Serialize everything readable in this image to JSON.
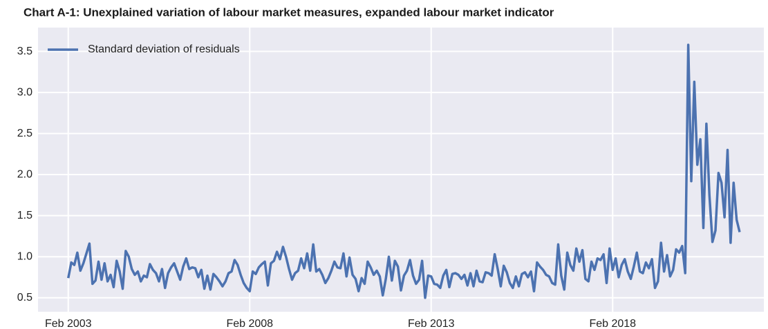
{
  "chart_data": {
    "type": "line",
    "title": "Chart A-1: Unexplained variation of labour market measures, expanded labour market indicator",
    "x": [
      "2003-02",
      "2003-03",
      "2003-04",
      "2003-05",
      "2003-06",
      "2003-07",
      "2003-08",
      "2003-09",
      "2003-10",
      "2003-11",
      "2003-12",
      "2004-01",
      "2004-02",
      "2004-03",
      "2004-04",
      "2004-05",
      "2004-06",
      "2004-07",
      "2004-08",
      "2004-09",
      "2004-10",
      "2004-11",
      "2004-12",
      "2005-01",
      "2005-02",
      "2005-03",
      "2005-04",
      "2005-05",
      "2005-06",
      "2005-07",
      "2005-08",
      "2005-09",
      "2005-10",
      "2005-11",
      "2005-12",
      "2006-01",
      "2006-02",
      "2006-03",
      "2006-04",
      "2006-05",
      "2006-06",
      "2006-07",
      "2006-08",
      "2006-09",
      "2006-10",
      "2006-11",
      "2006-12",
      "2007-01",
      "2007-02",
      "2007-03",
      "2007-04",
      "2007-05",
      "2007-06",
      "2007-07",
      "2007-08",
      "2007-09",
      "2007-10",
      "2007-11",
      "2007-12",
      "2008-01",
      "2008-02",
      "2008-03",
      "2008-04",
      "2008-05",
      "2008-06",
      "2008-07",
      "2008-08",
      "2008-09",
      "2008-10",
      "2008-11",
      "2008-12",
      "2009-01",
      "2009-02",
      "2009-03",
      "2009-04",
      "2009-05",
      "2009-06",
      "2009-07",
      "2009-08",
      "2009-09",
      "2009-10",
      "2009-11",
      "2009-12",
      "2010-01",
      "2010-02",
      "2010-03",
      "2010-04",
      "2010-05",
      "2010-06",
      "2010-07",
      "2010-08",
      "2010-09",
      "2010-10",
      "2010-11",
      "2010-12",
      "2011-01",
      "2011-02",
      "2011-03",
      "2011-04",
      "2011-05",
      "2011-06",
      "2011-07",
      "2011-08",
      "2011-09",
      "2011-10",
      "2011-11",
      "2011-12",
      "2012-01",
      "2012-02",
      "2012-03",
      "2012-04",
      "2012-05",
      "2012-06",
      "2012-07",
      "2012-08",
      "2012-09",
      "2012-10",
      "2012-11",
      "2012-12",
      "2013-01",
      "2013-02",
      "2013-03",
      "2013-04",
      "2013-05",
      "2013-06",
      "2013-07",
      "2013-08",
      "2013-09",
      "2013-10",
      "2013-11",
      "2013-12",
      "2014-01",
      "2014-02",
      "2014-03",
      "2014-04",
      "2014-05",
      "2014-06",
      "2014-07",
      "2014-08",
      "2014-09",
      "2014-10",
      "2014-11",
      "2014-12",
      "2015-01",
      "2015-02",
      "2015-03",
      "2015-04",
      "2015-05",
      "2015-06",
      "2015-07",
      "2015-08",
      "2015-09",
      "2015-10",
      "2015-11",
      "2015-12",
      "2016-01",
      "2016-02",
      "2016-03",
      "2016-04",
      "2016-05",
      "2016-06",
      "2016-07",
      "2016-08",
      "2016-09",
      "2016-10",
      "2016-11",
      "2016-12",
      "2017-01",
      "2017-02",
      "2017-03",
      "2017-04",
      "2017-05",
      "2017-06",
      "2017-07",
      "2017-08",
      "2017-09",
      "2017-10",
      "2017-11",
      "2017-12",
      "2018-01",
      "2018-02",
      "2018-03",
      "2018-04",
      "2018-05",
      "2018-06",
      "2018-07",
      "2018-08",
      "2018-09",
      "2018-10",
      "2018-11",
      "2018-12",
      "2019-01",
      "2019-02",
      "2019-03",
      "2019-04",
      "2019-05",
      "2019-06",
      "2019-07",
      "2019-08",
      "2019-09",
      "2019-10",
      "2019-11",
      "2019-12",
      "2020-01",
      "2020-02",
      "2020-03",
      "2020-04",
      "2020-05",
      "2020-06",
      "2020-07",
      "2020-08",
      "2020-09",
      "2020-10",
      "2020-11",
      "2020-12",
      "2021-01",
      "2021-02",
      "2021-03",
      "2021-04",
      "2021-05",
      "2021-06",
      "2021-07",
      "2021-08"
    ],
    "series": [
      {
        "name": "Standard deviation of residuals",
        "color": "#4c72b0",
        "values": [
          0.74,
          0.93,
          0.9,
          1.05,
          0.83,
          0.92,
          1.04,
          1.16,
          0.67,
          0.71,
          0.94,
          0.72,
          0.92,
          0.7,
          0.78,
          0.63,
          0.95,
          0.82,
          0.61,
          1.07,
          1.0,
          0.85,
          0.78,
          0.82,
          0.7,
          0.77,
          0.75,
          0.91,
          0.84,
          0.8,
          0.7,
          0.85,
          0.62,
          0.8,
          0.87,
          0.92,
          0.82,
          0.72,
          0.88,
          0.98,
          0.85,
          0.87,
          0.86,
          0.75,
          0.84,
          0.61,
          0.77,
          0.6,
          0.79,
          0.75,
          0.7,
          0.64,
          0.7,
          0.8,
          0.82,
          0.96,
          0.9,
          0.78,
          0.68,
          0.62,
          0.58,
          0.82,
          0.79,
          0.87,
          0.91,
          0.94,
          0.65,
          0.92,
          0.95,
          1.06,
          0.97,
          1.12,
          1.0,
          0.85,
          0.72,
          0.8,
          0.83,
          0.98,
          0.86,
          1.04,
          0.83,
          1.15,
          0.82,
          0.85,
          0.78,
          0.68,
          0.74,
          0.83,
          0.94,
          0.87,
          0.86,
          1.04,
          0.76,
          0.99,
          0.78,
          0.73,
          0.58,
          0.74,
          0.67,
          0.94,
          0.87,
          0.78,
          0.83,
          0.76,
          0.53,
          0.73,
          1.0,
          0.71,
          0.95,
          0.88,
          0.59,
          0.77,
          0.83,
          0.96,
          0.77,
          0.67,
          0.72,
          0.95,
          0.5,
          0.77,
          0.76,
          0.67,
          0.66,
          0.62,
          0.77,
          0.84,
          0.63,
          0.79,
          0.8,
          0.78,
          0.73,
          0.78,
          0.65,
          0.8,
          0.64,
          0.83,
          0.7,
          0.69,
          0.81,
          0.8,
          0.77,
          1.03,
          0.85,
          0.64,
          0.89,
          0.81,
          0.68,
          0.62,
          0.76,
          0.64,
          0.79,
          0.81,
          0.75,
          0.82,
          0.58,
          0.93,
          0.88,
          0.84,
          0.78,
          0.76,
          0.68,
          0.66,
          1.15,
          0.77,
          0.6,
          1.05,
          0.9,
          0.83,
          1.1,
          0.94,
          1.08,
          0.73,
          0.7,
          0.94,
          0.84,
          0.98,
          0.96,
          1.03,
          0.68,
          1.1,
          0.84,
          0.98,
          0.75,
          0.9,
          0.97,
          0.82,
          0.73,
          0.88,
          1.05,
          0.82,
          0.8,
          0.93,
          0.86,
          0.97,
          0.62,
          0.7,
          1.17,
          0.82,
          1.02,
          0.76,
          0.84,
          1.09,
          1.05,
          1.13,
          0.8,
          3.58,
          1.92,
          3.13,
          2.12,
          2.43,
          1.35,
          2.62,
          1.75,
          1.18,
          1.32,
          2.02,
          1.9,
          1.48,
          2.3,
          1.17,
          1.9,
          1.45,
          1.3
        ]
      }
    ],
    "xlim": [
      "2002-04",
      "2022-04"
    ],
    "xticks": [
      {
        "value": "2003-02",
        "label": "Feb 2003"
      },
      {
        "value": "2008-02",
        "label": "Feb 2008"
      },
      {
        "value": "2013-02",
        "label": "Feb 2013"
      },
      {
        "value": "2018-02",
        "label": "Feb 2018"
      }
    ],
    "ylim": [
      0.33,
      3.79
    ],
    "yticks": [
      0.5,
      {
        "value": 1,
        "label": "1.0"
      },
      1.5,
      {
        "value": 2,
        "label": "2.0"
      },
      2.5,
      {
        "value": 3,
        "label": "3.0"
      },
      3.5
    ],
    "grid": true,
    "legend": "upper left"
  }
}
